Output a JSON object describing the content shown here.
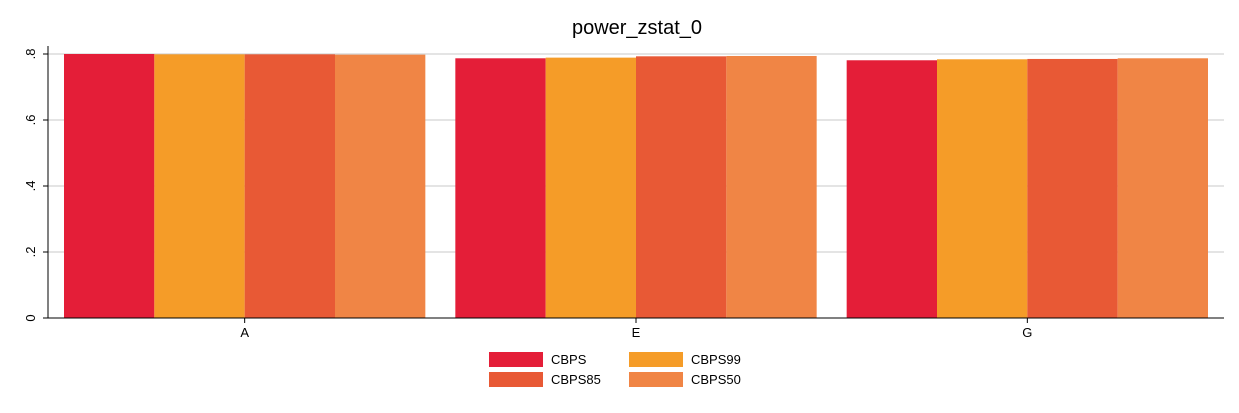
{
  "chart_data": {
    "type": "bar",
    "title": "power_zstat_0",
    "xlabel": "",
    "ylabel": "",
    "categories": [
      "A",
      "E",
      "G"
    ],
    "series": [
      {
        "name": "CBPS",
        "color": "#e41e38",
        "values": [
          0.8,
          0.787,
          0.781
        ]
      },
      {
        "name": "CBPS99",
        "color": "#f59c28",
        "values": [
          0.799,
          0.789,
          0.784
        ]
      },
      {
        "name": "CBPS85",
        "color": "#e85935",
        "values": [
          0.799,
          0.793,
          0.785
        ]
      },
      {
        "name": "CBPS50",
        "color": "#f08545",
        "values": [
          0.798,
          0.794,
          0.787
        ]
      }
    ],
    "ylim": [
      0,
      0.8
    ],
    "yticks": [
      0,
      0.2,
      0.4,
      0.6,
      0.8
    ],
    "ytick_labels": [
      "0",
      ".2",
      ".4",
      ".6",
      ".8"
    ],
    "grid": true,
    "legend_position": "bottom",
    "legend_columns": 2
  }
}
